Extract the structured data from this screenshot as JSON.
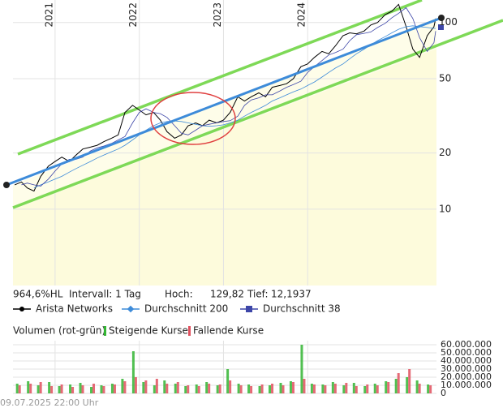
{
  "chart_data": [
    {
      "type": "line",
      "log_scale": true,
      "grid": true,
      "x": [
        2020.52,
        2020.6,
        2020.67,
        2020.75,
        2020.83,
        2020.92,
        2021.0,
        2021.08,
        2021.17,
        2021.25,
        2021.33,
        2021.42,
        2021.5,
        2021.58,
        2021.67,
        2021.75,
        2021.83,
        2021.92,
        2022.0,
        2022.08,
        2022.17,
        2022.25,
        2022.33,
        2022.42,
        2022.5,
        2022.58,
        2022.67,
        2022.75,
        2022.83,
        2022.92,
        2023.0,
        2023.08,
        2023.17,
        2023.25,
        2023.33,
        2023.42,
        2023.5,
        2023.58,
        2023.67,
        2023.75,
        2023.83,
        2023.92,
        2024.0,
        2024.08,
        2024.17,
        2024.25,
        2024.33,
        2024.42,
        2024.5,
        2024.58,
        2024.67,
        2024.75,
        2024.83,
        2024.92,
        2025.0,
        2025.08,
        2025.17,
        2025.25,
        2025.33,
        2025.42,
        2025.5,
        2025.52
      ],
      "xlim": [
        2020.5,
        2025.53
      ],
      "xticks": [
        2021,
        2022,
        2023,
        2024
      ],
      "ylim": [
        3.9,
        132
      ],
      "yticks": [
        10,
        20,
        50,
        100
      ],
      "series": [
        {
          "name": "Arista Networks",
          "color": "#000000",
          "marker": "circle",
          "values": [
            13.5,
            14,
            13,
            12.5,
            15,
            17,
            18,
            19,
            18,
            19.5,
            21,
            21.5,
            22,
            23,
            24,
            25,
            33,
            36,
            34,
            32,
            33,
            30,
            26,
            24,
            25,
            28,
            29,
            28,
            30,
            29,
            30,
            33,
            40,
            38,
            40,
            42,
            40,
            45,
            46,
            47,
            50,
            58,
            60,
            65,
            70,
            68,
            75,
            85,
            88,
            87,
            90,
            97,
            100,
            110,
            115,
            125,
            95,
            72,
            65,
            85,
            95,
            105
          ]
        },
        {
          "name": "Durchschnitt 200",
          "color": "#3d8bd9",
          "marker": "diamond",
          "values": [
            null,
            null,
            null,
            13,
            13.5,
            14,
            14.5,
            15,
            15.8,
            16.5,
            17.2,
            18,
            18.8,
            19.5,
            20.3,
            21,
            22,
            23.5,
            25,
            26.5,
            28,
            29,
            29.5,
            29.7,
            29.5,
            29,
            28.5,
            28,
            27.8,
            28,
            28.3,
            29,
            30,
            31.5,
            33,
            34.5,
            36,
            38,
            39.5,
            41,
            42.5,
            44,
            46,
            48,
            51,
            54,
            57,
            60,
            64,
            68,
            72,
            76,
            80,
            84,
            88,
            92,
            95,
            96,
            95,
            94,
            93,
            93
          ]
        },
        {
          "name": "Durchschnitt 38",
          "color": "#3d46a8",
          "marker": "square",
          "values": [
            null,
            13.5,
            13.8,
            13.5,
            13.3,
            14.5,
            16,
            17.5,
            18.5,
            18.5,
            19,
            20.5,
            21.3,
            21.8,
            22.5,
            23.5,
            24.5,
            29,
            33,
            34.5,
            33,
            32.5,
            31,
            28,
            25.5,
            25,
            26.5,
            28,
            28.5,
            29,
            29.5,
            29.8,
            31.5,
            36,
            38.5,
            39.5,
            41,
            41,
            43,
            45,
            46.5,
            48.5,
            54,
            58,
            62.5,
            67,
            69,
            72,
            80,
            86,
            87.5,
            89,
            94,
            99,
            106,
            112,
            120,
            105,
            83,
            70,
            78,
            90
          ]
        }
      ]
    },
    {
      "type": "bar",
      "title": "Volumen (rot-grün)",
      "x": [
        2020.55,
        2020.68,
        2020.8,
        2020.93,
        2021.05,
        2021.18,
        2021.3,
        2021.43,
        2021.55,
        2021.68,
        2021.8,
        2021.93,
        2022.05,
        2022.18,
        2022.3,
        2022.43,
        2022.55,
        2022.68,
        2022.8,
        2022.93,
        2023.05,
        2023.18,
        2023.3,
        2023.43,
        2023.55,
        2023.68,
        2023.8,
        2023.93,
        2024.05,
        2024.18,
        2024.3,
        2024.43,
        2024.55,
        2024.68,
        2024.8,
        2024.93,
        2025.05,
        2025.18,
        2025.3,
        2025.43
      ],
      "xlim": [
        2020.5,
        2025.53
      ],
      "ylim": [
        0,
        65000000
      ],
      "yticks": [
        {
          "value": 60000000,
          "label": "60.000.000"
        },
        {
          "value": 50000000,
          "label": "50.000.000"
        },
        {
          "value": 40000000,
          "label": "40.000.000"
        },
        {
          "value": 30000000,
          "label": "30.000.000"
        },
        {
          "value": 20000000,
          "label": "20.000.000"
        },
        {
          "value": 10000000,
          "label": "10.000.000"
        },
        0
      ],
      "series": [
        {
          "name": "Steigende Kurse",
          "color": "#33b533",
          "values": [
            12000000,
            15000000,
            10000000,
            14000000,
            9000000,
            11000000,
            13000000,
            8000000,
            10000000,
            12000000,
            18000000,
            52000000,
            14000000,
            10000000,
            16000000,
            12000000,
            9000000,
            11000000,
            14000000,
            10000000,
            30000000,
            12000000,
            11000000,
            9000000,
            10000000,
            13000000,
            15000000,
            60000000,
            12000000,
            11000000,
            14000000,
            10000000,
            13000000,
            9000000,
            12000000,
            15000000,
            18000000,
            20000000,
            16000000,
            11000000
          ]
        },
        {
          "name": "Fallende Kurse",
          "color": "#e0505e",
          "values": [
            10000000,
            12000000,
            14000000,
            9000000,
            11000000,
            8000000,
            10000000,
            12000000,
            9000000,
            11000000,
            15000000,
            20000000,
            16000000,
            18000000,
            12000000,
            14000000,
            10000000,
            9000000,
            12000000,
            11000000,
            16000000,
            10000000,
            9000000,
            11000000,
            12000000,
            10000000,
            14000000,
            18000000,
            11000000,
            10000000,
            12000000,
            13000000,
            9000000,
            11000000,
            10000000,
            14000000,
            25000000,
            30000000,
            12000000,
            10000000
          ]
        }
      ]
    }
  ],
  "stats": [
    "964,6%HL",
    "Intervall: 1 Tag",
    "Hoch:",
    "129,82",
    "Tief:",
    "12,1937"
  ],
  "footer": "09.07.2025 22:00 Uhr"
}
